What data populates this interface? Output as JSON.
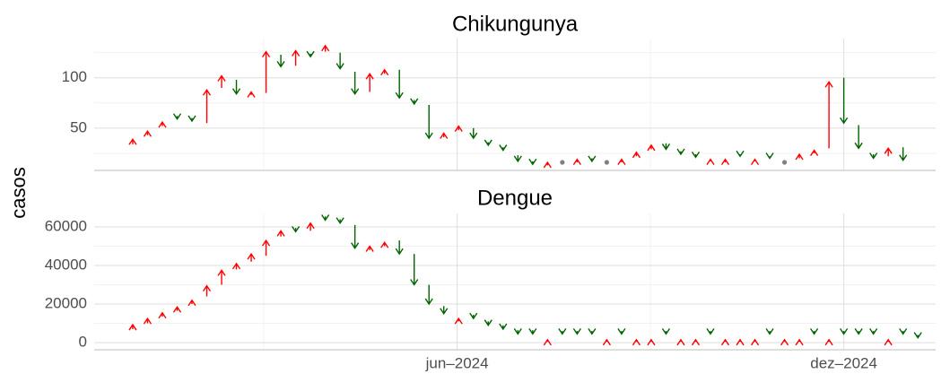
{
  "chart_data": [
    {
      "type": "arrow",
      "title": "Chikungunya",
      "ylabel": "casos",
      "x": [
        1,
        2,
        3,
        4,
        5,
        6,
        7,
        8,
        9,
        10,
        11,
        12,
        13,
        14,
        15,
        16,
        17,
        18,
        19,
        20,
        21,
        22,
        23,
        24,
        25,
        26,
        27,
        28,
        29,
        30,
        31,
        32,
        33,
        34,
        35,
        36,
        37,
        38,
        39,
        40,
        41,
        42,
        43,
        44,
        45,
        46,
        47,
        48,
        49,
        50,
        51,
        52,
        53
      ],
      "previous": [
        34,
        43,
        52,
        62,
        60,
        55,
        90,
        98,
        83,
        85,
        123,
        112,
        124,
        126,
        125,
        106,
        86,
        104,
        108,
        78,
        73,
        41,
        48,
        50,
        36,
        31,
        23,
        17,
        13,
        16,
        16,
        20,
        16,
        16,
        22,
        29,
        35,
        27,
        24,
        17,
        16,
        24,
        17,
        22,
        16,
        20,
        25,
        30,
        100,
        53,
        24,
        22,
        31
      ],
      "values": [
        39,
        47,
        56,
        59,
        57,
        88,
        102,
        84,
        86,
        126,
        111,
        127,
        121,
        132,
        109,
        84,
        104,
        108,
        80,
        74,
        40,
        45,
        52,
        40,
        33,
        28,
        17,
        14,
        16,
        16,
        19,
        17,
        16,
        19,
        26,
        33,
        29,
        24,
        21,
        19,
        19,
        22,
        19,
        20,
        16,
        24,
        28,
        96,
        55,
        30,
        20,
        30,
        18
      ],
      "up_color": "#ff0000",
      "down_color": "#006400",
      "flat_color": "#808080",
      "xlim": [
        -1.6,
        55.2
      ],
      "ylim": [
        8,
        139
      ],
      "yticks": [
        50,
        100
      ],
      "grid": true
    },
    {
      "type": "arrow",
      "title": "Dengue",
      "x": [
        1,
        2,
        3,
        4,
        5,
        6,
        7,
        8,
        9,
        10,
        11,
        12,
        13,
        14,
        15,
        16,
        17,
        18,
        19,
        20,
        21,
        22,
        23,
        24,
        25,
        26,
        27,
        28,
        29,
        30,
        31,
        32,
        33,
        34,
        35,
        36,
        37,
        38,
        39,
        40,
        41,
        42,
        43,
        44,
        45,
        46,
        47,
        48,
        49,
        50,
        51,
        52,
        53,
        54
      ],
      "previous": [
        7000,
        10000,
        13500,
        16500,
        20000,
        24000,
        30000,
        38000,
        42000,
        45000,
        55000,
        59500,
        58000,
        65500,
        64000,
        61000,
        48000,
        50000,
        53000,
        46000,
        30000,
        19000,
        11000,
        14500,
        11000,
        9000,
        6500,
        6500,
        500,
        6000,
        6000,
        6000,
        500,
        6000,
        500,
        500,
        6000,
        500,
        500,
        6000,
        500,
        500,
        500,
        6000,
        500,
        500,
        6000,
        500,
        6000,
        6000,
        6000,
        500,
        6000,
        4000
      ],
      "values": [
        9300,
        12500,
        15500,
        18500,
        22000,
        29500,
        37500,
        41000,
        46000,
        53000,
        58000,
        57500,
        62000,
        63500,
        62000,
        49000,
        50000,
        52000,
        46000,
        30000,
        20000,
        15000,
        12500,
        12500,
        9000,
        7000,
        4500,
        4500,
        1500,
        4500,
        4500,
        4500,
        1500,
        4500,
        1500,
        1500,
        4500,
        1500,
        1500,
        4500,
        1500,
        1500,
        1500,
        4500,
        1500,
        1500,
        4500,
        1500,
        4500,
        4500,
        4500,
        1500,
        4500,
        2500
      ],
      "up_color": "#ff0000",
      "down_color": "#006400",
      "flat_color": "#808080",
      "xlim": [
        -1.6,
        55.2
      ],
      "ylim": [
        -3700,
        67000
      ],
      "yticks": [
        0,
        20000,
        40000,
        60000
      ],
      "xticks": [
        {
          "value": 22.9,
          "label": "jun–2024"
        },
        {
          "value": 49,
          "label": "dez–2024"
        }
      ],
      "grid": true
    }
  ]
}
